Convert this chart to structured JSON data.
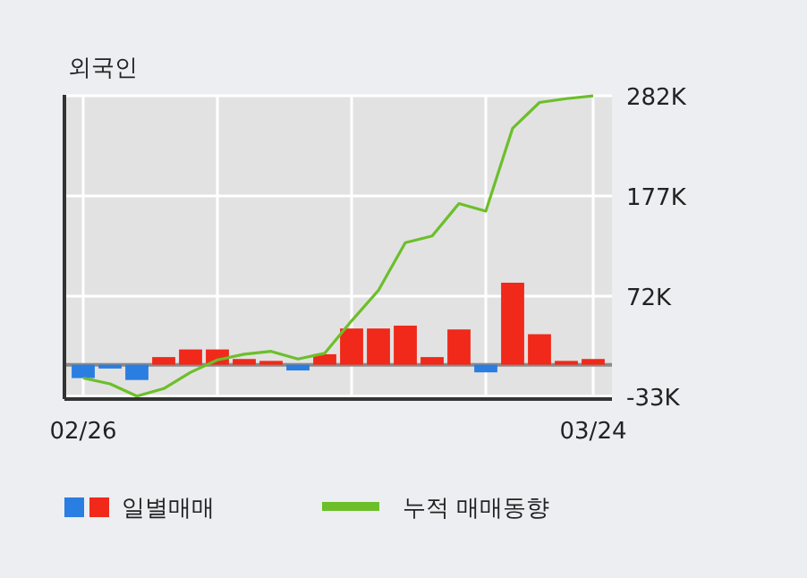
{
  "chart_data": {
    "type": "bar",
    "title": "외국인",
    "categories": [
      "02/26",
      null,
      null,
      null,
      null,
      null,
      null,
      null,
      null,
      null,
      null,
      null,
      null,
      null,
      null,
      null,
      null,
      null,
      null,
      "03/24"
    ],
    "series": [
      {
        "name": "일별매매",
        "colors": [
          "#2a7de1",
          "#2a7de1",
          "#2a7de1",
          "#f0291a",
          "#f0291a",
          "#f0291a",
          "#f0291a",
          "#f0291a",
          "#2a7de1",
          "#f0291a",
          "#f0291a",
          "#f0291a",
          "#f0291a",
          "#f0291a",
          "#f0291a",
          "#2a7de1",
          "#f0291a",
          "#f0291a",
          "#f0291a",
          "#f0291a"
        ],
        "values": [
          -14,
          -4,
          -16,
          8,
          16,
          16,
          6,
          4,
          -6,
          11,
          38,
          38,
          41,
          8,
          37,
          -8,
          86,
          32,
          4,
          6
        ]
      },
      {
        "name": "누적 매매동향",
        "type": "line",
        "color": "#6cbf2a",
        "values": [
          -14,
          -20,
          -33,
          -25,
          -8,
          5,
          11,
          14,
          6,
          12,
          46,
          78,
          128,
          135,
          169,
          161,
          248,
          275,
          279,
          282
        ]
      }
    ],
    "ylim": [
      -36,
      283
    ],
    "yticks": [
      {
        "value": -33,
        "label": "-33K"
      },
      {
        "value": 72,
        "label": "72K"
      },
      {
        "value": 177,
        "label": "177K"
      },
      {
        "value": 282,
        "label": "282K"
      }
    ],
    "grid": true,
    "legend": "bottom",
    "marker": "none"
  }
}
